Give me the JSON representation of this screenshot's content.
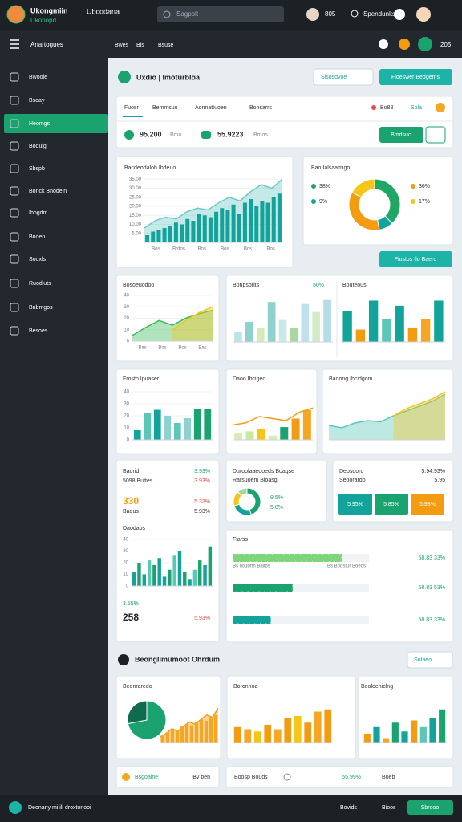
{
  "topbar": {
    "app_name": "Ukongmiin",
    "app_sub": "Ukonopd",
    "workspace": "Ubcodana",
    "search": "Sagpolt",
    "count": "805",
    "user": "Spendunks"
  },
  "navbar": {
    "title": "Anartogues",
    "links": [
      "Bwes",
      "Bis",
      "Bsuse"
    ],
    "badge": "205"
  },
  "sidebar": {
    "items": [
      "Bwoole",
      "Bsoay",
      "Heomgs",
      "Boduig",
      "Sbspb",
      "Bonck Bnodeln",
      "Ibogdm",
      "Bnoen",
      "Sooxls",
      "Ruodiuts",
      "Bnbmgos",
      "Besoes"
    ],
    "active": 2
  },
  "header": {
    "title": "Uxdio | Imoturbloa",
    "dropdown": "Sisosdvoe",
    "button": "Fioeswer Bedgems"
  },
  "summary": {
    "tabs": [
      "Fuosr",
      "Bemmsuo",
      "Aonnattuoen",
      "Bonsarrs"
    ],
    "status": "Bo88",
    "link": "Sola",
    "metric1": "95.200",
    "metric1_unit": "Bmo",
    "metric2": "55.9223",
    "metric2_unit": "Bmos",
    "button": "Bmdsuo"
  },
  "actions": {
    "report": "Fiustos Ilo Baero"
  },
  "charts": [
    {
      "type": "bar",
      "title": "Bacdeodaloh Ibdeuo",
      "ylim": [
        0,
        40
      ],
      "yticks": [
        {
          "value": 5,
          "label": "5.00"
        },
        {
          "value": 10,
          "label": "10.00"
        },
        {
          "value": 15,
          "label": "15.00"
        },
        {
          "value": 20,
          "label": "20.00"
        },
        {
          "value": 25,
          "label": "25.00"
        },
        {
          "value": 30,
          "label": "30.00"
        },
        {
          "value": 35,
          "label": "35.00"
        }
      ],
      "xlabels": [
        "Bos",
        "Brdos",
        "Bos",
        "Bos",
        "Bos",
        "Bos"
      ],
      "series": [
        {
          "style": "area",
          "color": "#6fc9c6",
          "values": [
            8,
            12,
            14,
            13,
            17,
            19,
            18,
            22,
            25,
            23,
            28,
            32,
            30,
            35
          ]
        },
        {
          "style": "bar",
          "color": "#13a39a",
          "values": [
            4,
            6,
            7,
            8,
            9,
            11,
            10,
            13,
            12,
            16,
            15,
            14,
            17,
            19,
            18,
            21,
            16,
            22,
            24,
            20,
            23,
            22,
            25,
            27
          ]
        }
      ]
    },
    {
      "type": "donut",
      "title": "Bao Ialsaamigo",
      "values": [
        38,
        9,
        36,
        17
      ],
      "value_labels": [
        "38%",
        "9%",
        "36%",
        "17%"
      ],
      "colors": [
        "#1fa864",
        "#12a39a",
        "#f39c12",
        "#f5c518"
      ]
    },
    {
      "type": "area",
      "title": "Bosoeuodoo",
      "ylim": [
        0,
        40
      ],
      "yticks": [
        0,
        10,
        20,
        30,
        40
      ],
      "xlabels": [
        "Bas",
        "Bos",
        "Bos",
        "Bas"
      ],
      "series": [
        {
          "style": "area",
          "color": "#3dbb5a",
          "values": [
            5,
            12,
            18,
            14,
            20,
            24,
            27
          ]
        },
        {
          "style": "area",
          "color": "#f5c518",
          "values": [
            null,
            null,
            null,
            10,
            18,
            25,
            30
          ]
        }
      ]
    },
    {
      "type": "bar",
      "title": "Bonpsorits",
      "badge": "50%",
      "ylim": [
        0,
        45
      ],
      "series": [
        {
          "style": "bar",
          "colors": [
            "#bfe3e0",
            "#8fd1cf",
            "#d6ecb8",
            "#8fd1cf",
            "#c9e9e6",
            "#a8d8a0",
            "#bfe0ef",
            "#d2ecc8",
            "#b3dde8"
          ],
          "values": [
            10,
            20,
            14,
            40,
            22,
            14,
            38,
            30,
            42
          ]
        }
      ]
    },
    {
      "type": "bar",
      "title": "Bouteous",
      "ylim": [
        0,
        45
      ],
      "series": [
        {
          "style": "bar",
          "colors": [
            "#12a39a",
            "#f39c12",
            "#12a39a",
            "#5cc7b8",
            "#12a39a",
            "#f39c12",
            "#f5a623",
            "#12a39a"
          ],
          "values": [
            30,
            12,
            40,
            22,
            35,
            14,
            22,
            40
          ]
        }
      ]
    },
    {
      "type": "bar",
      "title": "Frosto Ipuaser",
      "ylim": [
        0,
        40
      ],
      "yticks": [
        0,
        10,
        20,
        30,
        40
      ],
      "series": [
        {
          "style": "bar",
          "colors": [
            "#12a39a",
            "#5cc7b8",
            "#12a39a",
            "#8fd1cf",
            "#5cc7b8",
            "#8fd1cf",
            "#1aa36e",
            "#1aa36e"
          ],
          "values": [
            8,
            22,
            25,
            20,
            14,
            18,
            26,
            26
          ]
        }
      ]
    },
    {
      "type": "bar",
      "title": "Daoo Ibcigeo",
      "ylim": [
        0,
        40
      ],
      "series": [
        {
          "style": "bar",
          "colors": [
            "#d6ecb8",
            "#c9e9a0",
            "#f5c518",
            "#d6ecb8",
            "#1aa36e",
            "#f39c12",
            "#f5a623"
          ],
          "values": [
            6,
            8,
            10,
            4,
            12,
            20,
            28
          ]
        },
        {
          "style": "line",
          "color": "#f39c12",
          "values": [
            14,
            16,
            22,
            20,
            18,
            26,
            30
          ]
        }
      ]
    },
    {
      "type": "area",
      "title": "Baoong Ibcidgom",
      "ylim": [
        0,
        40
      ],
      "series": [
        {
          "style": "area",
          "color": "#5cc7b8",
          "values": [
            12,
            10,
            14,
            16,
            15,
            20,
            24,
            28,
            32,
            38
          ]
        },
        {
          "style": "area",
          "color": "#f3c623",
          "values": [
            null,
            null,
            null,
            null,
            null,
            20,
            26,
            30,
            34,
            40
          ]
        }
      ]
    },
    {
      "type": "donut",
      "values": [
        45,
        25,
        18,
        12
      ],
      "colors": [
        "#1aa36e",
        "#12a39a",
        "#f5c518",
        "#a8d8a0"
      ]
    },
    {
      "type": "bar",
      "ylim": [
        0,
        40
      ],
      "yticks": [
        0,
        10,
        20,
        30,
        40
      ],
      "series": [
        {
          "style": "bar",
          "colors": [
            "#12a39a",
            "#1aa36e",
            "#12a39a",
            "#5cc7b8",
            "#1aa36e",
            "#12a39a",
            "#12a39a",
            "#1aa36e",
            "#5cc7b8",
            "#12a39a",
            "#1aa36e",
            "#12a39a",
            "#5cc7b8",
            "#1aa36e",
            "#12a39a",
            "#1aa36e"
          ],
          "values": [
            12,
            20,
            10,
            22,
            18,
            24,
            8,
            14,
            26,
            30,
            12,
            6,
            14,
            22,
            18,
            34
          ]
        }
      ]
    },
    {
      "type": "hbar",
      "title": "Fiarss",
      "xlim": [
        0,
        100
      ],
      "values": [
        80,
        44,
        28
      ],
      "colors": [
        "#7fd67a",
        "#1aa36e",
        "#12a39a"
      ],
      "row_labels": [
        "58.83 33%",
        "58.83 53%",
        "58.83 33%"
      ],
      "sub_labels": [
        "Bs Iloubrtn Ballbs",
        "Bs Bodstur Boegs"
      ]
    },
    {
      "type": "pie",
      "values": [
        72,
        28
      ],
      "colors": [
        "#1aa36e",
        "#0f6b4d"
      ]
    },
    {
      "type": "area",
      "title": "Beonraredo",
      "ylim": [
        0,
        40
      ],
      "series": [
        {
          "style": "area",
          "color": "#f39c12",
          "values": [
            5,
            8,
            12,
            10,
            14,
            18,
            16,
            20,
            24,
            22,
            30
          ]
        },
        {
          "style": "bar",
          "color": "#f5a623",
          "values": [
            6,
            9,
            12,
            11,
            14,
            16,
            15,
            18,
            20,
            19,
            22,
            24
          ]
        }
      ]
    },
    {
      "type": "bar",
      "title": "Boronnoa",
      "ylim": [
        0,
        40
      ],
      "series": [
        {
          "style": "bar",
          "colors": [
            "#f39c12",
            "#f5a623",
            "#f5c518",
            "#f39c12",
            "#f5a623",
            "#f39c12",
            "#f5c518",
            "#f39c12",
            "#f5a623",
            "#f39c12"
          ],
          "values": [
            14,
            12,
            10,
            16,
            12,
            22,
            24,
            18,
            28,
            30
          ]
        }
      ]
    },
    {
      "type": "bar",
      "title": "Beoloeniclng",
      "ylim": [
        0,
        40
      ],
      "series": [
        {
          "style": "bar",
          "colors": [
            "#f39c12",
            "#12a39a",
            "#f5a623",
            "#1aa36e",
            "#12a39a",
            "#f39c12",
            "#5cc7b8",
            "#12a39a",
            "#1aa36e"
          ],
          "values": [
            8,
            14,
            4,
            18,
            10,
            20,
            14,
            22,
            30
          ]
        }
      ]
    }
  ],
  "stats": {
    "label1": "Baorid",
    "pct1": "3.93%",
    "label2": "5098 Buttes",
    "pct2": "3.93%",
    "big1": "330",
    "pct3": "5.33%",
    "label3": "Baous",
    "pct4": "5.93%",
    "title2": "Daodaos",
    "pct5": "3.55%",
    "big2": "258",
    "pct6": "5.93%"
  },
  "breakdown": {
    "title": "Duroolaaeooeds Boagse",
    "subtitle": "Rarsuoem Bloasg",
    "pct1": "9.5%",
    "pct2": "5.8%"
  },
  "deposit": {
    "title": "Deosoord",
    "value": "5.94.93%",
    "sub": "Seoorardo",
    "value2": "5.95",
    "tiles": [
      "5.95%",
      "5.85%",
      "5.93%"
    ]
  },
  "section": {
    "title": "Beonglimumoot Ohrdum",
    "dropdown": "Sotaeo"
  },
  "cards": [
    {
      "label": "Bsgoaine",
      "value": "Bv ben"
    },
    {
      "label": "Boosp Bouds",
      "value": "55.99%",
      "extra": "Boeb"
    }
  ],
  "bottombar": {
    "text": "Deonany mi ili droxtorjooi",
    "links": [
      "Bovids",
      "Bioos"
    ],
    "button": "Sbrooo"
  }
}
